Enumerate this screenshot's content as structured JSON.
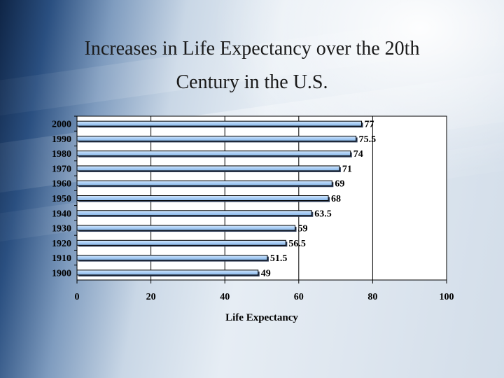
{
  "slide": {
    "title_line1": "Increases in Life Expectancy over the 20th",
    "title_line2": "Century in the U.S."
  },
  "chart_data": {
    "type": "bar",
    "orientation": "horizontal",
    "categories": [
      "1900",
      "1910",
      "1920",
      "1930",
      "1940",
      "1950",
      "1960",
      "1970",
      "1980",
      "1990",
      "2000"
    ],
    "values": [
      49,
      51.5,
      56.5,
      59,
      63.5,
      68,
      69,
      71,
      74,
      75.5,
      77
    ],
    "data_labels": [
      "49",
      "51.5",
      "56.5",
      "59",
      "63.5",
      "68",
      "69",
      "71",
      "74",
      "75.5",
      "77"
    ],
    "xlabel": "Life Expectancy",
    "ylabel": "",
    "xlim": [
      0,
      100
    ],
    "xticks": [
      "0",
      "20",
      "40",
      "60",
      "80",
      "100"
    ],
    "grid": "vertical",
    "legend": "none",
    "colors": {
      "bar": "#a9cdf5",
      "bar_edge": "#000000",
      "plot_bg": "#ffffff"
    }
  }
}
